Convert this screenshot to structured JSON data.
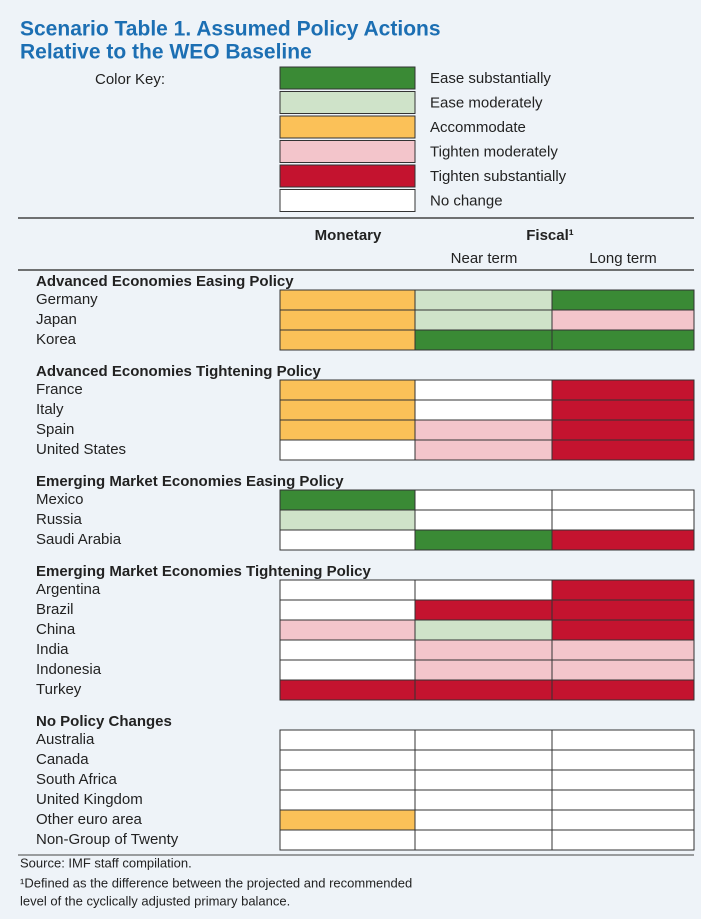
{
  "title": [
    "Scenario Table 1. Assumed Policy Actions",
    "Relative to the WEO Baseline"
  ],
  "color_key": {
    "label": "Color Key:",
    "entries": [
      {
        "label": "Ease substantially",
        "color": "#3a8a35"
      },
      {
        "label": "Ease moderately",
        "color": "#cfe3c9"
      },
      {
        "label": "Accommodate",
        "color": "#fbc158"
      },
      {
        "label": "Tighten moderately",
        "color": "#f3c5cb"
      },
      {
        "label": "Tighten substantially",
        "color": "#c4132f"
      },
      {
        "label": "No change",
        "color": "#ffffff"
      }
    ]
  },
  "headers": {
    "monetary": "Monetary",
    "fiscal": "Fiscal¹",
    "near_term": "Near term",
    "long_term": "Long term"
  },
  "groups": [
    {
      "title": "Advanced Economies Easing Policy",
      "rows": [
        {
          "name": "Germany",
          "cells": [
            "Accommodate",
            "Ease moderately",
            "Ease substantially"
          ]
        },
        {
          "name": "Japan",
          "cells": [
            "Accommodate",
            "Ease moderately",
            "Tighten moderately"
          ]
        },
        {
          "name": "Korea",
          "cells": [
            "Accommodate",
            "Ease substantially",
            "Ease substantially"
          ]
        }
      ]
    },
    {
      "title": "Advanced Economies Tightening Policy",
      "rows": [
        {
          "name": "France",
          "cells": [
            "Accommodate",
            "No change",
            "Tighten substantially"
          ]
        },
        {
          "name": "Italy",
          "cells": [
            "Accommodate",
            "No change",
            "Tighten substantially"
          ]
        },
        {
          "name": "Spain",
          "cells": [
            "Accommodate",
            "Tighten moderately",
            "Tighten substantially"
          ]
        },
        {
          "name": "United States",
          "cells": [
            "No change",
            "Tighten moderately",
            "Tighten substantially"
          ]
        }
      ]
    },
    {
      "title": "Emerging Market Economies Easing Policy",
      "rows": [
        {
          "name": "Mexico",
          "cells": [
            "Ease substantially",
            "No change",
            "No change"
          ]
        },
        {
          "name": "Russia",
          "cells": [
            "Ease moderately",
            "No change",
            "No change"
          ]
        },
        {
          "name": "Saudi Arabia",
          "cells": [
            "No change",
            "Ease substantially",
            "Tighten substantially"
          ]
        }
      ]
    },
    {
      "title": "Emerging Market Economies Tightening Policy",
      "rows": [
        {
          "name": "Argentina",
          "cells": [
            "No change",
            "No change",
            "Tighten substantially"
          ]
        },
        {
          "name": "Brazil",
          "cells": [
            "No change",
            "Tighten substantially",
            "Tighten substantially"
          ]
        },
        {
          "name": "China",
          "cells": [
            "Tighten moderately",
            "Ease moderately",
            "Tighten substantially"
          ]
        },
        {
          "name": "India",
          "cells": [
            "No change",
            "Tighten moderately",
            "Tighten moderately"
          ]
        },
        {
          "name": "Indonesia",
          "cells": [
            "No change",
            "Tighten moderately",
            "Tighten moderately"
          ]
        },
        {
          "name": "Turkey",
          "cells": [
            "Tighten substantially",
            "Tighten substantially",
            "Tighten substantially"
          ]
        }
      ]
    },
    {
      "title": "No Policy Changes",
      "rows": [
        {
          "name": "Australia",
          "cells": [
            "No change",
            "No change",
            "No change"
          ]
        },
        {
          "name": "Canada",
          "cells": [
            "No change",
            "No change",
            "No change"
          ]
        },
        {
          "name": "South Africa",
          "cells": [
            "No change",
            "No change",
            "No change"
          ]
        },
        {
          "name": "United Kingdom",
          "cells": [
            "No change",
            "No change",
            "No change"
          ]
        },
        {
          "name": "Other euro area",
          "cells": [
            "Accommodate",
            "No change",
            "No change"
          ]
        },
        {
          "name": "Non-Group of Twenty",
          "cells": [
            "No change",
            "No change",
            "No change"
          ]
        }
      ]
    }
  ],
  "source": "Source: IMF staff compilation.",
  "footnote": [
    "¹Defined as the difference between the projected and recommended",
    "level of the cyclically adjusted primary balance."
  ]
}
